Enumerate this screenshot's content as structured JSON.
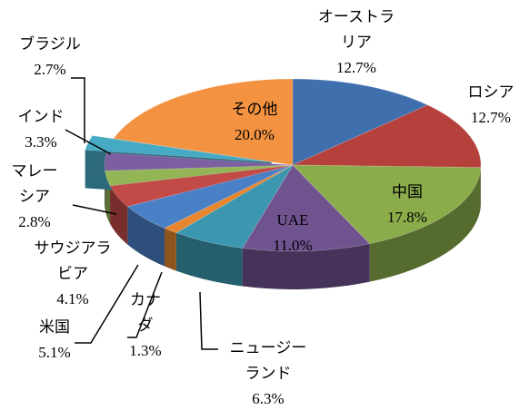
{
  "chart_data": {
    "type": "pie3d",
    "categories": [
      "オーストラリア",
      "ロシア",
      "中国",
      "UAE",
      "ニュージーランド",
      "カナダ",
      "米国",
      "サウジアラビア",
      "マレーシア",
      "インド",
      "ブラジル",
      "その他"
    ],
    "values": [
      12.7,
      12.7,
      17.8,
      11.0,
      6.3,
      1.3,
      5.1,
      4.1,
      2.8,
      3.3,
      2.7,
      20.0
    ],
    "value_labels": [
      "12.7%",
      "12.7%",
      "17.8%",
      "11.0%",
      "6.3%",
      "1.3%",
      "5.1%",
      "4.1%",
      "2.8%",
      "3.3%",
      "2.7%",
      "20.0%"
    ],
    "colors": [
      "#3f6fad",
      "#b5403c",
      "#8bac4a",
      "#6f538f",
      "#3b97b0",
      "#e7862f",
      "#4a80c6",
      "#c24a47",
      "#93b556",
      "#7c5fa0",
      "#47aac4",
      "#f39240"
    ],
    "exploded": [
      "ブラジル"
    ]
  }
}
